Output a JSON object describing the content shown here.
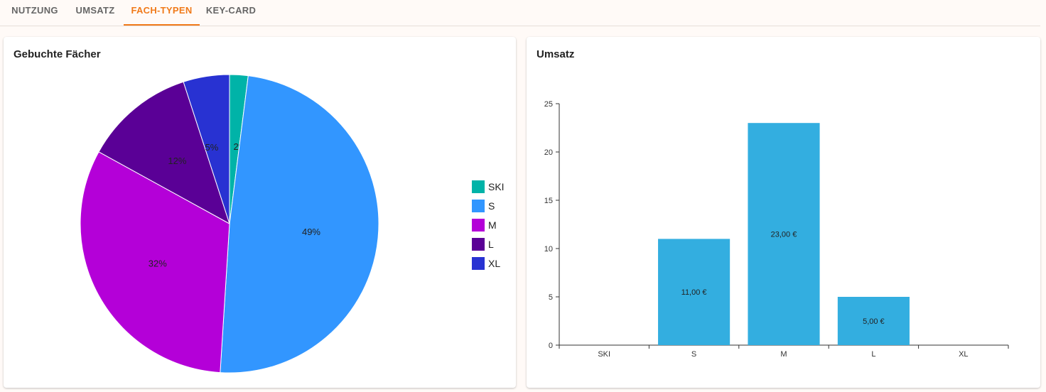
{
  "tabs": [
    {
      "label": "NUTZUNG",
      "active": false
    },
    {
      "label": "UMSATZ",
      "active": false
    },
    {
      "label": "FACH-TYPEN",
      "active": true
    },
    {
      "label": "KEY-CARD",
      "active": false
    }
  ],
  "colors": {
    "accent": "#f07a1a",
    "ski": "#00b3a8",
    "s": "#3296ff",
    "m": "#b400d8",
    "l": "#5a0096",
    "xl": "#2832d2",
    "bar": "#33aee0"
  },
  "pie_card": {
    "title": "Gebuchte Fächer"
  },
  "bar_card": {
    "title": "Umsatz"
  },
  "chart_data": [
    {
      "type": "pie",
      "title": "Gebuchte Fächer",
      "slices": [
        {
          "label": "SKI",
          "value": 2,
          "display": "2%",
          "color": "#00b3a8"
        },
        {
          "label": "S",
          "value": 49,
          "display": "49%",
          "color": "#3296ff"
        },
        {
          "label": "M",
          "value": 32,
          "display": "32%",
          "color": "#b400d8"
        },
        {
          "label": "L",
          "value": 12,
          "display": "12%",
          "color": "#5a0096"
        },
        {
          "label": "XL",
          "value": 5,
          "display": "5%",
          "color": "#2832d2"
        }
      ],
      "legend_position": "right"
    },
    {
      "type": "bar",
      "title": "Umsatz",
      "categories": [
        "SKI",
        "S",
        "M",
        "L",
        "XL"
      ],
      "values": [
        0,
        11,
        23,
        5,
        0
      ],
      "data_labels": [
        "",
        "11,00 €",
        "23,00 €",
        "5,00 €",
        ""
      ],
      "ylim": [
        0,
        25
      ],
      "yticks": [
        "0",
        "5",
        "10",
        "15",
        "20",
        "25"
      ]
    }
  ]
}
